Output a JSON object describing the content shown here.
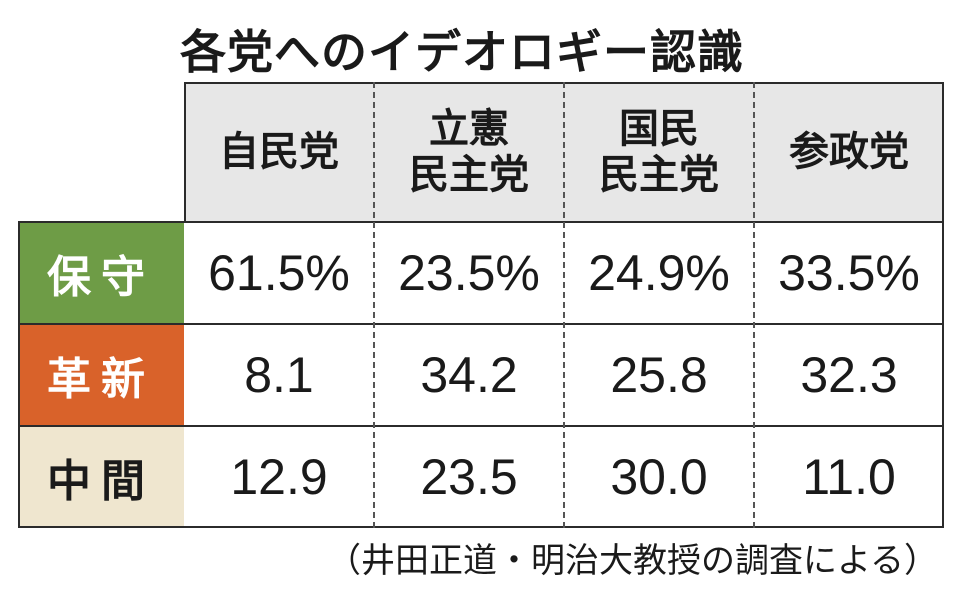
{
  "title": "各党へのイデオロギー認識",
  "chart_data": {
    "type": "table",
    "title": "各党へのイデオロギー認識",
    "columns": [
      {
        "line1": "自民党",
        "line2": ""
      },
      {
        "line1": "立憲",
        "line2": "民主党"
      },
      {
        "line1": "国民",
        "line2": "民主党"
      },
      {
        "line1": "参政党",
        "line2": ""
      }
    ],
    "rows": [
      {
        "label": "保守",
        "color": "#6e9c46",
        "text_color": "#ffffff",
        "cells": [
          "61.5%",
          "23.5%",
          "24.9%",
          "33.5%"
        ]
      },
      {
        "label": "革新",
        "color": "#d9622a",
        "text_color": "#ffffff",
        "cells": [
          "8.1",
          "34.2",
          "25.8",
          "32.3"
        ]
      },
      {
        "label": "中間",
        "color": "#efe6cf",
        "text_color": "#1a1a1a",
        "cells": [
          "12.9",
          "23.5",
          "30.0",
          "11.0"
        ]
      }
    ],
    "values": [
      [
        61.5,
        23.5,
        24.9,
        33.5
      ],
      [
        8.1,
        34.2,
        25.8,
        32.3
      ],
      [
        12.9,
        23.5,
        30.0,
        11.0
      ]
    ],
    "unit": "%",
    "source": "（井田正道・明治大教授の調査による）"
  },
  "colors": {
    "header_bg": "#e7e7e7",
    "border": "#2b2b2b"
  }
}
